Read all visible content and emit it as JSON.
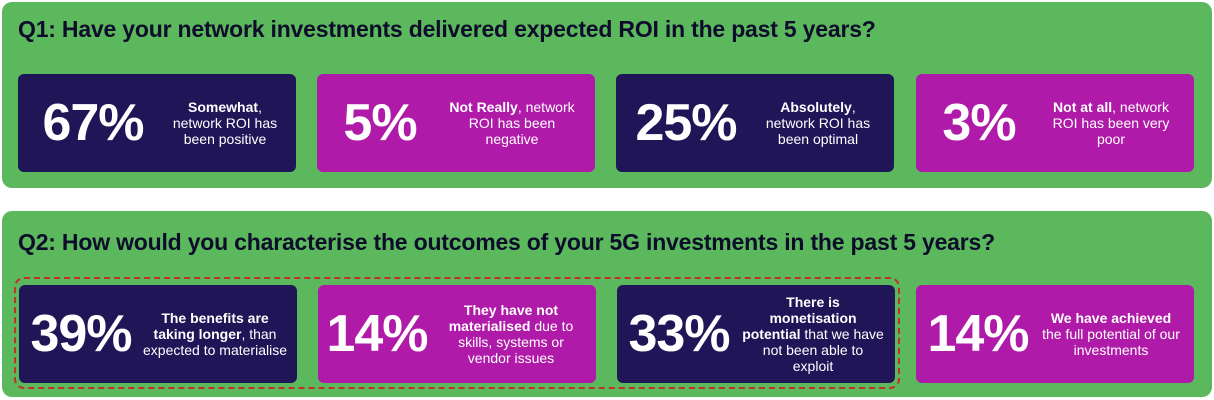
{
  "q1": {
    "question": "Q1: Have your network investments delivered expected ROI in the past 5 years?",
    "cards": [
      {
        "pct": "67%",
        "bold": "Somewhat",
        "rest": ", network ROI has been positive"
      },
      {
        "pct": "5%",
        "bold": "Not Really",
        "rest": ", network ROI has been negative"
      },
      {
        "pct": "25%",
        "bold": "Absolutely",
        "rest": ", network ROI has been optimal"
      },
      {
        "pct": "3%",
        "bold": "Not at all",
        "rest": ", network ROI has been very poor"
      }
    ]
  },
  "q2": {
    "question": "Q2: How would you characterise the outcomes of your 5G investments in the past 5 years?",
    "cards": [
      {
        "pct": "39%",
        "bold": "The benefits are taking longer",
        "rest": ", than expected to materialise"
      },
      {
        "pct": "14%",
        "bold": "They have not materialised",
        "rest": " due to skills, systems or vendor issues"
      },
      {
        "pct": "33%",
        "bold": "There is monetisation potential",
        "rest": " that we have not been able to exploit"
      },
      {
        "pct": "14%",
        "bold": "We have achieved",
        "rest": " the full potential of our investments"
      }
    ]
  },
  "colors": {
    "panel": "#5cb85c",
    "navy": "#1f1557",
    "magenta": "#b01aa8",
    "highlight_border": "#c0302c"
  }
}
